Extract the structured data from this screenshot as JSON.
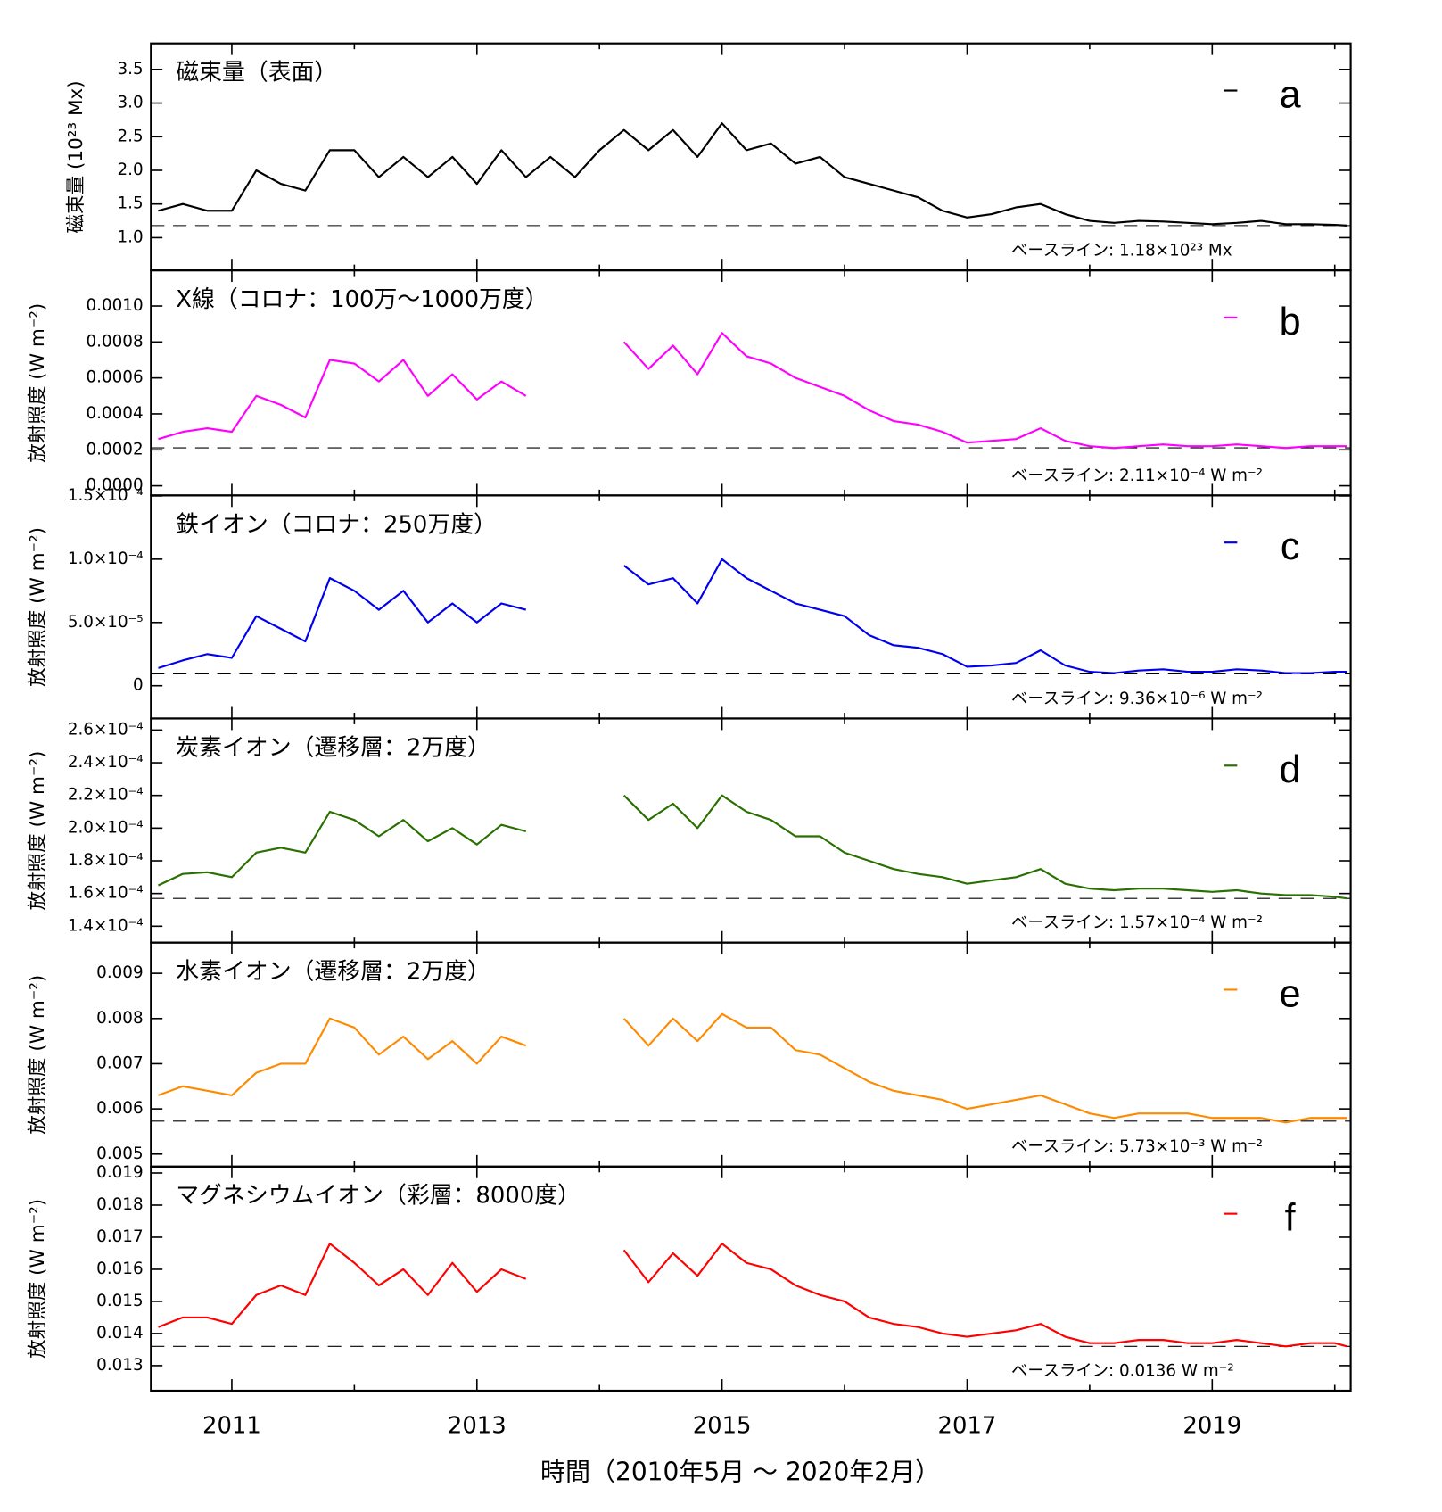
{
  "chart_data": {
    "type": "line",
    "xlabel": "時間（2010年5月 〜 2020年2月）",
    "xlim": [
      2010.34,
      2020.13
    ],
    "xticks": [
      2011,
      2013,
      2015,
      2017,
      2019
    ],
    "xminorticks": [
      2012,
      2014,
      2016,
      2018,
      2020
    ],
    "x": [
      2010.4,
      2010.6,
      2010.8,
      2011.0,
      2011.2,
      2011.4,
      2011.6,
      2011.8,
      2012.0,
      2012.2,
      2012.4,
      2012.6,
      2012.8,
      2013.0,
      2013.2,
      2013.4,
      2013.6,
      2013.8,
      2014.0,
      2014.2,
      2014.4,
      2014.6,
      2014.8,
      2015.0,
      2015.2,
      2015.4,
      2015.6,
      2015.8,
      2016.0,
      2016.2,
      2016.4,
      2016.6,
      2016.8,
      2017.0,
      2017.2,
      2017.4,
      2017.6,
      2017.8,
      2018.0,
      2018.2,
      2018.4,
      2018.6,
      2018.8,
      2019.0,
      2019.2,
      2019.4,
      2019.6,
      2019.8,
      2020.0,
      2020.1
    ],
    "panels": [
      {
        "title": "磁束量（表面）",
        "letter": "a",
        "ylabel": "磁束量 (10²³ Mx)",
        "color": "#000000",
        "ylim": [
          0.514,
          3.886
        ],
        "yticks": [
          {
            "value": 1,
            "label": "1.0"
          },
          1.5,
          {
            "value": 2,
            "label": "2.0"
          },
          2.5,
          {
            "value": 3,
            "label": "3.0"
          },
          3.5
        ],
        "baseline": 1.18,
        "baseline_label": "ベースライン: 1.18×10²³ Mx",
        "values": [
          1.4,
          1.5,
          1.4,
          1.4,
          2.0,
          1.8,
          1.7,
          2.3,
          2.3,
          1.9,
          2.2,
          1.9,
          2.2,
          1.8,
          2.3,
          1.9,
          2.2,
          1.9,
          2.3,
          2.6,
          2.3,
          2.6,
          2.2,
          2.7,
          2.3,
          2.4,
          2.1,
          2.2,
          1.9,
          1.8,
          1.7,
          1.6,
          1.4,
          1.3,
          1.35,
          1.45,
          1.5,
          1.35,
          1.25,
          1.22,
          1.25,
          1.24,
          1.22,
          1.2,
          1.22,
          1.25,
          1.2,
          1.2,
          1.19,
          1.18
        ]
      },
      {
        "title": "X線（コロナ：100万〜1000万度）",
        "letter": "b",
        "ylabel": "放射照度 (W m⁻²)",
        "color": "#ff00ff",
        "ylim": [
          -5.35e-05,
          0.001198
        ],
        "yticks": [
          {
            "value": 0,
            "label": "0.0000"
          },
          0.0002,
          0.0004,
          0.0006,
          0.0008,
          {
            "value": 0.001,
            "label": "0.0010"
          }
        ],
        "baseline": 0.000211,
        "baseline_label": "ベースライン: 2.11×10⁻⁴ W m⁻²",
        "values": [
          0.00026,
          0.0003,
          0.00032,
          0.0003,
          0.0005,
          0.00045,
          0.00038,
          0.0007,
          0.00068,
          0.00058,
          0.0007,
          0.0005,
          0.00062,
          0.00048,
          0.00058,
          0.0005,
          null,
          null,
          null,
          0.0008,
          0.00065,
          0.00078,
          0.00062,
          0.00085,
          0.00072,
          0.00068,
          0.0006,
          0.00055,
          0.0005,
          0.00042,
          0.00036,
          0.00034,
          0.0003,
          0.00024,
          0.00025,
          0.00026,
          0.00032,
          0.00025,
          0.00022,
          0.00021,
          0.00022,
          0.00023,
          0.00022,
          0.00022,
          0.00023,
          0.00022,
          0.00021,
          0.00022,
          0.00022,
          0.00022
        ]
      },
      {
        "title": "鉄イオン（コロナ：250万度）",
        "letter": "c",
        "ylabel": "放射照度 (W m⁻²)",
        "color": "#0000ee",
        "ylim": [
          -2.59e-05,
          0.0001504
        ],
        "yticks": [
          0,
          {
            "value": 5e-05,
            "label": "5.0×10⁻⁵"
          },
          {
            "value": 0.0001,
            "label": "1.0×10⁻⁴"
          },
          {
            "value": 0.00015,
            "label": "1.5×10⁻⁴"
          }
        ],
        "baseline": 9.36e-06,
        "baseline_label": "ベースライン: 9.36×10⁻⁶ W m⁻²",
        "values": [
          1.4e-05,
          2e-05,
          2.5e-05,
          2.2e-05,
          5.5e-05,
          4.5e-05,
          3.5e-05,
          8.5e-05,
          7.5e-05,
          6e-05,
          7.5e-05,
          5e-05,
          6.5e-05,
          5e-05,
          6.5e-05,
          6e-05,
          null,
          null,
          null,
          9.5e-05,
          8e-05,
          8.5e-05,
          6.5e-05,
          0.0001,
          8.5e-05,
          7.5e-05,
          6.5e-05,
          6e-05,
          5.5e-05,
          4e-05,
          3.2e-05,
          3e-05,
          2.5e-05,
          1.5e-05,
          1.6e-05,
          1.8e-05,
          2.8e-05,
          1.6e-05,
          1.1e-05,
          1e-05,
          1.2e-05,
          1.3e-05,
          1.1e-05,
          1.1e-05,
          1.3e-05,
          1.2e-05,
          1e-05,
          1e-05,
          1.1e-05,
          1.1e-05
        ]
      },
      {
        "title": "炭素イオン（遷移層：2万度）",
        "letter": "d",
        "ylabel": "放射照度 (W m⁻²)",
        "color": "#2a7000",
        "ylim": [
          0.00013,
          0.00026706
        ],
        "yticks": [
          {
            "value": 0.00014,
            "label": "1.4×10⁻⁴"
          },
          {
            "value": 0.00016,
            "label": "1.6×10⁻⁴"
          },
          {
            "value": 0.00018,
            "label": "1.8×10⁻⁴"
          },
          {
            "value": 0.0002,
            "label": "2.0×10⁻⁴"
          },
          {
            "value": 0.00022,
            "label": "2.2×10⁻⁴"
          },
          {
            "value": 0.00024,
            "label": "2.4×10⁻⁴"
          },
          {
            "value": 0.00026,
            "label": "2.6×10⁻⁴"
          }
        ],
        "baseline": 0.000157,
        "baseline_label": "ベースライン: 1.57×10⁻⁴ W m⁻²",
        "values": [
          0.000165,
          0.000172,
          0.000173,
          0.00017,
          0.000185,
          0.000188,
          0.000185,
          0.00021,
          0.000205,
          0.000195,
          0.000205,
          0.000192,
          0.0002,
          0.00019,
          0.000202,
          0.000198,
          null,
          null,
          null,
          0.00022,
          0.000205,
          0.000215,
          0.0002,
          0.00022,
          0.00021,
          0.000205,
          0.000195,
          0.000195,
          0.000185,
          0.00018,
          0.000175,
          0.000172,
          0.00017,
          0.000166,
          0.000168,
          0.00017,
          0.000175,
          0.000166,
          0.000163,
          0.000162,
          0.000163,
          0.000163,
          0.000162,
          0.000161,
          0.000162,
          0.00016,
          0.000159,
          0.000159,
          0.000158,
          0.000157
        ]
      },
      {
        "title": "水素イオン（遷移層：2万度）",
        "letter": "e",
        "ylabel": "放射照度 (W m⁻²)",
        "color": "#ff8a00",
        "ylim": [
          0.004723,
          0.009681
        ],
        "yticks": [
          0.005,
          0.006,
          0.007,
          0.008,
          0.009
        ],
        "baseline": 0.00573,
        "baseline_label": "ベースライン: 5.73×10⁻³ W m⁻²",
        "values": [
          0.0063,
          0.0065,
          0.0064,
          0.0063,
          0.0068,
          0.007,
          0.007,
          0.008,
          0.0078,
          0.0072,
          0.0076,
          0.0071,
          0.0075,
          0.007,
          0.0076,
          0.0074,
          null,
          null,
          null,
          0.008,
          0.0074,
          0.008,
          0.0075,
          0.0081,
          0.0078,
          0.0078,
          0.0073,
          0.0072,
          0.0069,
          0.0066,
          0.0064,
          0.0063,
          0.0062,
          0.006,
          0.0061,
          0.0062,
          0.0063,
          0.0061,
          0.0059,
          0.0058,
          0.0059,
          0.0059,
          0.0059,
          0.0058,
          0.0058,
          0.0058,
          0.0057,
          0.0058,
          0.0058,
          0.0058
        ]
      },
      {
        "title": "マグネシウムイオン（彩層：8000度）",
        "letter": "f",
        "ylabel": "放射照度 (W m⁻²)",
        "color": "#ff0000",
        "ylim": [
          0.01222,
          0.0192
        ],
        "yticks": [
          0.013,
          0.014,
          0.015,
          0.016,
          0.017,
          0.018,
          0.019
        ],
        "baseline": 0.0136,
        "baseline_label": "ベースライン: 0.0136 W m⁻²",
        "values": [
          0.0142,
          0.0145,
          0.0145,
          0.0143,
          0.0152,
          0.0155,
          0.0152,
          0.0168,
          0.0162,
          0.0155,
          0.016,
          0.0152,
          0.0162,
          0.0153,
          0.016,
          0.0157,
          null,
          null,
          null,
          0.0166,
          0.0156,
          0.0165,
          0.0158,
          0.0168,
          0.0162,
          0.016,
          0.0155,
          0.0152,
          0.015,
          0.0145,
          0.0143,
          0.0142,
          0.014,
          0.0139,
          0.014,
          0.0141,
          0.0143,
          0.0139,
          0.0137,
          0.0137,
          0.0138,
          0.0138,
          0.0137,
          0.0137,
          0.0138,
          0.0137,
          0.0136,
          0.0137,
          0.0137,
          0.0136
        ]
      }
    ]
  }
}
